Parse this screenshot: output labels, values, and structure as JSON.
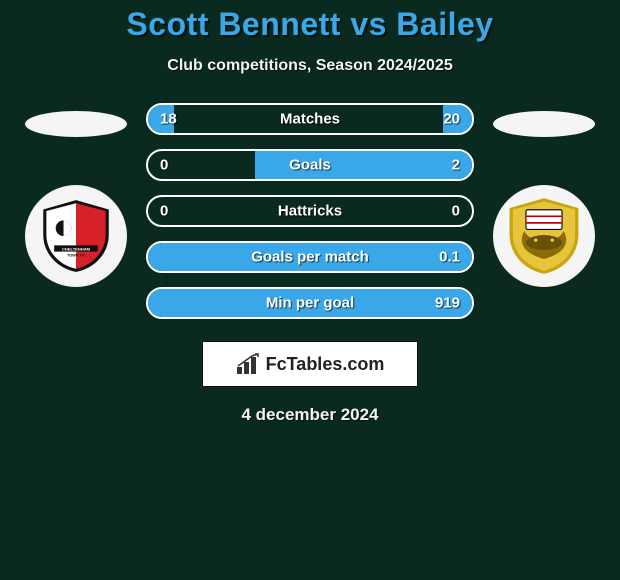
{
  "title": "Scott Bennett vs Bailey",
  "subtitle": "Club competitions, Season 2024/2025",
  "date": "4 december 2024",
  "brand": "FcTables.com",
  "colors": {
    "background": "#0a2a1f",
    "accent": "#3aa8e8",
    "bar_border": "#ffffff",
    "text": "#ffffff",
    "brand_bg": "#ffffff",
    "brand_text": "#222222"
  },
  "left_team": {
    "badge_name": "Cheltenham Town FC",
    "oval_color": "#f5f5f5"
  },
  "right_team": {
    "badge_name": "Doncaster Rovers",
    "oval_color": "#f5f5f5"
  },
  "stats": [
    {
      "label": "Matches",
      "left_val": "18",
      "right_val": "20",
      "fill_left_pct": 8,
      "fill_right_pct": 9
    },
    {
      "label": "Goals",
      "left_val": "0",
      "right_val": "2",
      "fill_left_pct": 0,
      "fill_right_pct": 67
    },
    {
      "label": "Hattricks",
      "left_val": "0",
      "right_val": "0",
      "fill_left_pct": 0,
      "fill_right_pct": 0
    },
    {
      "label": "Goals per match",
      "left_val": "",
      "right_val": "0.1",
      "fill_left_pct": 0,
      "fill_right_pct": 100
    },
    {
      "label": "Min per goal",
      "left_val": "",
      "right_val": "919",
      "fill_left_pct": 0,
      "fill_right_pct": 100
    }
  ]
}
